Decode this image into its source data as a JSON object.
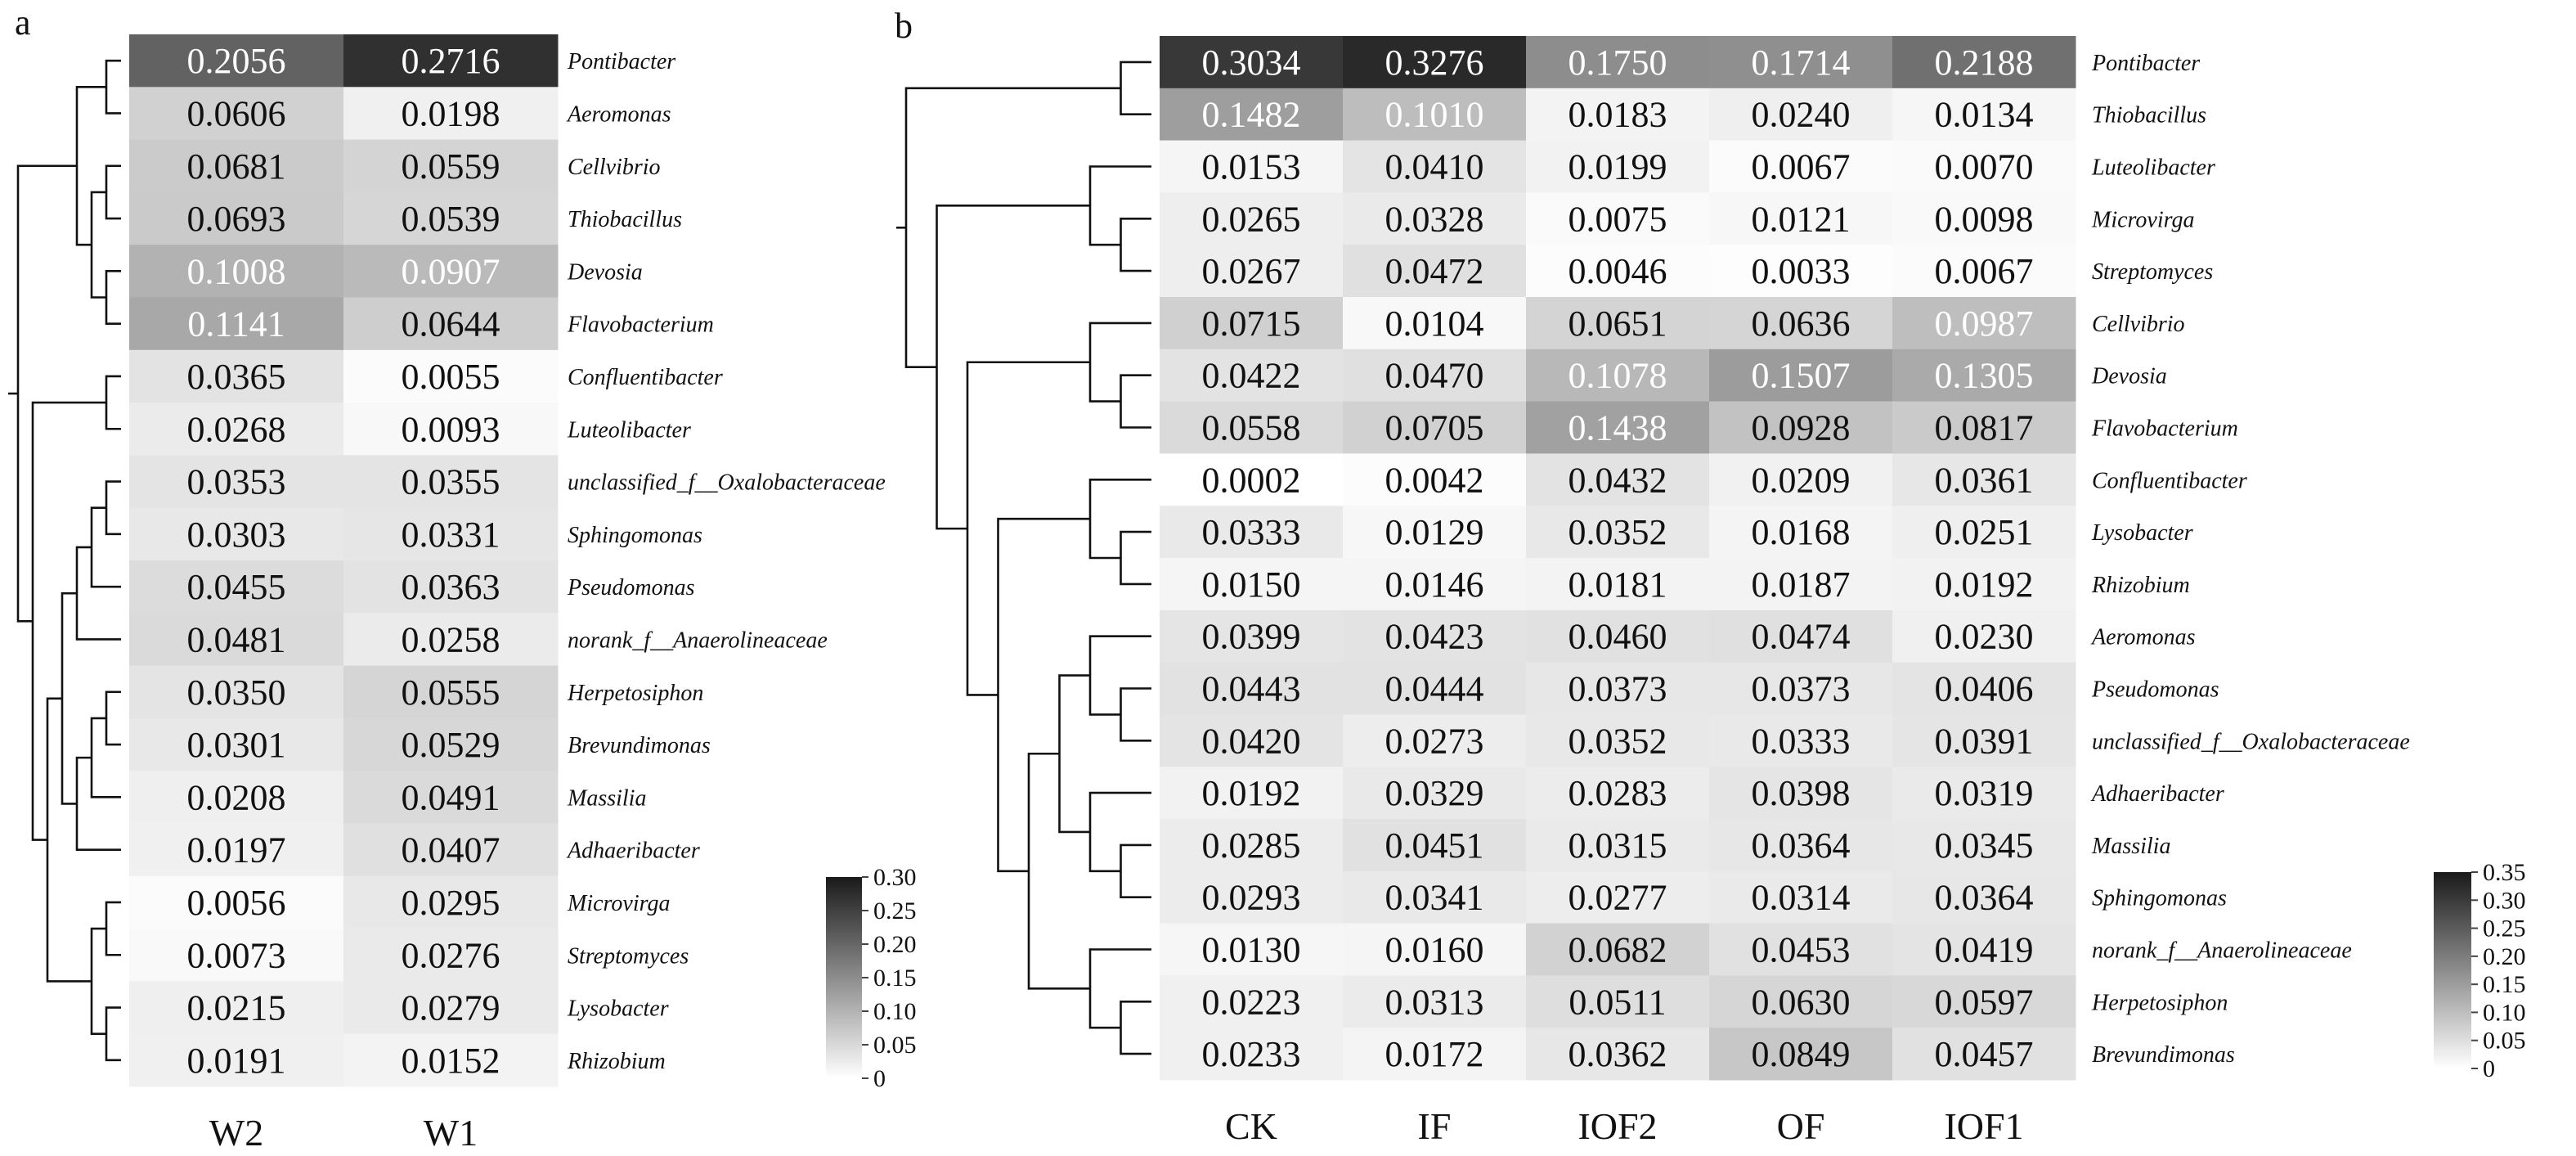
{
  "chart_data": [
    {
      "type": "heatmap",
      "panel_label": "a",
      "columns": [
        "W2",
        "W1"
      ],
      "rows": [
        "Pontibacter",
        "Aeromonas",
        "Cellvibrio",
        "Thiobacillus",
        "Devosia",
        "Flavobacterium",
        "Confluentibacter",
        "Luteolibacter",
        "unclassified_f__Oxalobacteraceae",
        "Sphingomonas",
        "Pseudomonas",
        "norank_f__Anaerolineaceae",
        "Herpetosiphon",
        "Brevundimonas",
        "Massilia",
        "Adhaeribacter",
        "Microvirga",
        "Streptomyces",
        "Lysobacter",
        "Rhizobium"
      ],
      "values": [
        [
          0.2056,
          0.2716
        ],
        [
          0.0606,
          0.0198
        ],
        [
          0.0681,
          0.0559
        ],
        [
          0.0693,
          0.0539
        ],
        [
          0.1008,
          0.0907
        ],
        [
          0.1141,
          0.0644
        ],
        [
          0.0365,
          0.0055
        ],
        [
          0.0268,
          0.0093
        ],
        [
          0.0353,
          0.0355
        ],
        [
          0.0303,
          0.0331
        ],
        [
          0.0455,
          0.0363
        ],
        [
          0.0481,
          0.0258
        ],
        [
          0.035,
          0.0555
        ],
        [
          0.0301,
          0.0529
        ],
        [
          0.0208,
          0.0491
        ],
        [
          0.0197,
          0.0407
        ],
        [
          0.0056,
          0.0295
        ],
        [
          0.0073,
          0.0276
        ],
        [
          0.0215,
          0.0279
        ],
        [
          0.0191,
          0.0152
        ]
      ],
      "value_labels": [
        [
          "0.2056",
          "0.2716"
        ],
        [
          "0.0606",
          "0.0198"
        ],
        [
          "0.0681",
          "0.0559"
        ],
        [
          "0.0693",
          "0.0539"
        ],
        [
          "0.1008",
          "0.0907"
        ],
        [
          "0.1141",
          "0.0644"
        ],
        [
          "0.0365",
          "0.0055"
        ],
        [
          "0.0268",
          "0.0093"
        ],
        [
          "0.0353",
          "0.0355"
        ],
        [
          "0.0303",
          "0.0331"
        ],
        [
          "0.0455",
          "0.0363"
        ],
        [
          "0.0481",
          "0.0258"
        ],
        [
          "0.0350",
          "0.0555"
        ],
        [
          "0.0301",
          "0.0529"
        ],
        [
          "0.0208",
          "0.0491"
        ],
        [
          "0.0197",
          "0.0407"
        ],
        [
          "0.0056",
          "0.0295"
        ],
        [
          "0.0073",
          "0.0276"
        ],
        [
          "0.0215",
          "0.0279"
        ],
        [
          "0.0191",
          "0.0152"
        ]
      ],
      "colorbar": {
        "range": [
          0,
          0.3
        ],
        "tick_values": [
          0,
          0.05,
          0.1,
          0.15,
          0.2,
          0.25,
          0.3
        ],
        "tick_labels": [
          "0",
          "0.05",
          "0.10",
          "0.15",
          "0.20",
          "0.25",
          "0.30"
        ],
        "colors": [
          "#ffffff",
          "#1a1a1a"
        ]
      },
      "dendrogram": [
        [
          2,
          3
        ],
        [
          4,
          5
        ],
        [
          20,
          21
        ],
        [
          0,
          1
        ],
        [
          23,
          22
        ],
        [
          6,
          7
        ],
        [
          16,
          17
        ],
        [
          18,
          19
        ],
        [
          8,
          9
        ],
        [
          28,
          10
        ],
        [
          29,
          11
        ],
        [
          12,
          13
        ],
        [
          31,
          14
        ],
        [
          32,
          15
        ],
        [
          26,
          27
        ],
        [
          30,
          33
        ],
        [
          35,
          34
        ],
        [
          25,
          36
        ],
        [
          24,
          37
        ]
      ]
    },
    {
      "type": "heatmap",
      "panel_label": "b",
      "columns": [
        "CK",
        "IF",
        "IOF2",
        "OF",
        "IOF1"
      ],
      "rows": [
        "Pontibacter",
        "Thiobacillus",
        "Luteolibacter",
        "Microvirga",
        "Streptomyces",
        "Cellvibrio",
        "Devosia",
        "Flavobacterium",
        "Confluentibacter",
        "Lysobacter",
        "Rhizobium",
        "Aeromonas",
        "Pseudomonas",
        "unclassified_f__Oxalobacteraceae",
        "Adhaeribacter",
        "Massilia",
        "Sphingomonas",
        "norank_f__Anaerolineaceae",
        "Herpetosiphon",
        "Brevundimonas"
      ],
      "values": [
        [
          0.3034,
          0.3276,
          0.175,
          0.1714,
          0.2188
        ],
        [
          0.1482,
          0.101,
          0.0183,
          0.024,
          0.0134
        ],
        [
          0.0153,
          0.041,
          0.0199,
          0.0067,
          0.007
        ],
        [
          0.0265,
          0.0328,
          0.0075,
          0.0121,
          0.0098
        ],
        [
          0.0267,
          0.0472,
          0.0046,
          0.0033,
          0.0067
        ],
        [
          0.0715,
          0.0104,
          0.0651,
          0.0636,
          0.0987
        ],
        [
          0.0422,
          0.047,
          0.1078,
          0.1507,
          0.1305
        ],
        [
          0.0558,
          0.0705,
          0.1438,
          0.0928,
          0.0817
        ],
        [
          0.0002,
          0.0042,
          0.0432,
          0.0209,
          0.0361
        ],
        [
          0.0333,
          0.0129,
          0.0352,
          0.0168,
          0.0251
        ],
        [
          0.015,
          0.0146,
          0.0181,
          0.0187,
          0.0192
        ],
        [
          0.0399,
          0.0423,
          0.046,
          0.0474,
          0.023
        ],
        [
          0.0443,
          0.0444,
          0.0373,
          0.0373,
          0.0406
        ],
        [
          0.042,
          0.0273,
          0.0352,
          0.0333,
          0.0391
        ],
        [
          0.0192,
          0.0329,
          0.0283,
          0.0398,
          0.0319
        ],
        [
          0.0285,
          0.0451,
          0.0315,
          0.0364,
          0.0345
        ],
        [
          0.0293,
          0.0341,
          0.0277,
          0.0314,
          0.0364
        ],
        [
          0.013,
          0.016,
          0.0682,
          0.0453,
          0.0419
        ],
        [
          0.0223,
          0.0313,
          0.0511,
          0.063,
          0.0597
        ],
        [
          0.0233,
          0.0172,
          0.0362,
          0.0849,
          0.0457
        ]
      ],
      "value_labels": [
        [
          "0.3034",
          "0.3276",
          "0.1750",
          "0.1714",
          "0.2188"
        ],
        [
          "0.1482",
          "0.1010",
          "0.0183",
          "0.0240",
          "0.0134"
        ],
        [
          "0.0153",
          "0.0410",
          "0.0199",
          "0.0067",
          "0.0070"
        ],
        [
          "0.0265",
          "0.0328",
          "0.0075",
          "0.0121",
          "0.0098"
        ],
        [
          "0.0267",
          "0.0472",
          "0.0046",
          "0.0033",
          "0.0067"
        ],
        [
          "0.0715",
          "0.0104",
          "0.0651",
          "0.0636",
          "0.0987"
        ],
        [
          "0.0422",
          "0.0470",
          "0.1078",
          "0.1507",
          "0.1305"
        ],
        [
          "0.0558",
          "0.0705",
          "0.1438",
          "0.0928",
          "0.0817"
        ],
        [
          "0.0002",
          "0.0042",
          "0.0432",
          "0.0209",
          "0.0361"
        ],
        [
          "0.0333",
          "0.0129",
          "0.0352",
          "0.0168",
          "0.0251"
        ],
        [
          "0.0150",
          "0.0146",
          "0.0181",
          "0.0187",
          "0.0192"
        ],
        [
          "0.0399",
          "0.0423",
          "0.0460",
          "0.0474",
          "0.0230"
        ],
        [
          "0.0443",
          "0.0444",
          "0.0373",
          "0.0373",
          "0.0406"
        ],
        [
          "0.0420",
          "0.0273",
          "0.0352",
          "0.0333",
          "0.0391"
        ],
        [
          "0.0192",
          "0.0329",
          "0.0283",
          "0.0398",
          "0.0319"
        ],
        [
          "0.0285",
          "0.0451",
          "0.0315",
          "0.0364",
          "0.0345"
        ],
        [
          "0.0293",
          "0.0341",
          "0.0277",
          "0.0314",
          "0.0364"
        ],
        [
          "0.0130",
          "0.0160",
          "0.0682",
          "0.0453",
          "0.0419"
        ],
        [
          "0.0223",
          "0.0313",
          "0.0511",
          "0.0630",
          "0.0597"
        ],
        [
          "0.0233",
          "0.0172",
          "0.0362",
          "0.0849",
          "0.0457"
        ]
      ],
      "colorbar": {
        "range": [
          0,
          0.35
        ],
        "tick_values": [
          0,
          0.05,
          0.1,
          0.15,
          0.2,
          0.25,
          0.3,
          0.35
        ],
        "tick_labels": [
          "0",
          "0.05",
          "0.10",
          "0.15",
          "0.20",
          "0.25",
          "0.30",
          "0.35"
        ],
        "colors": [
          "#ffffff",
          "#1a1a1a"
        ]
      },
      "dendrogram": [
        [
          3,
          4
        ],
        [
          2,
          20
        ],
        [
          6,
          7
        ],
        [
          22,
          5
        ],
        [
          0,
          1
        ],
        [
          9,
          10
        ],
        [
          8,
          25
        ],
        [
          15,
          16
        ],
        [
          14,
          27
        ],
        [
          18,
          19
        ],
        [
          17,
          29
        ],
        [
          12,
          13
        ],
        [
          11,
          31
        ],
        [
          28,
          32
        ],
        [
          30,
          33
        ],
        [
          26,
          34
        ],
        [
          23,
          35
        ],
        [
          21,
          36
        ],
        [
          24,
          37
        ]
      ]
    }
  ]
}
